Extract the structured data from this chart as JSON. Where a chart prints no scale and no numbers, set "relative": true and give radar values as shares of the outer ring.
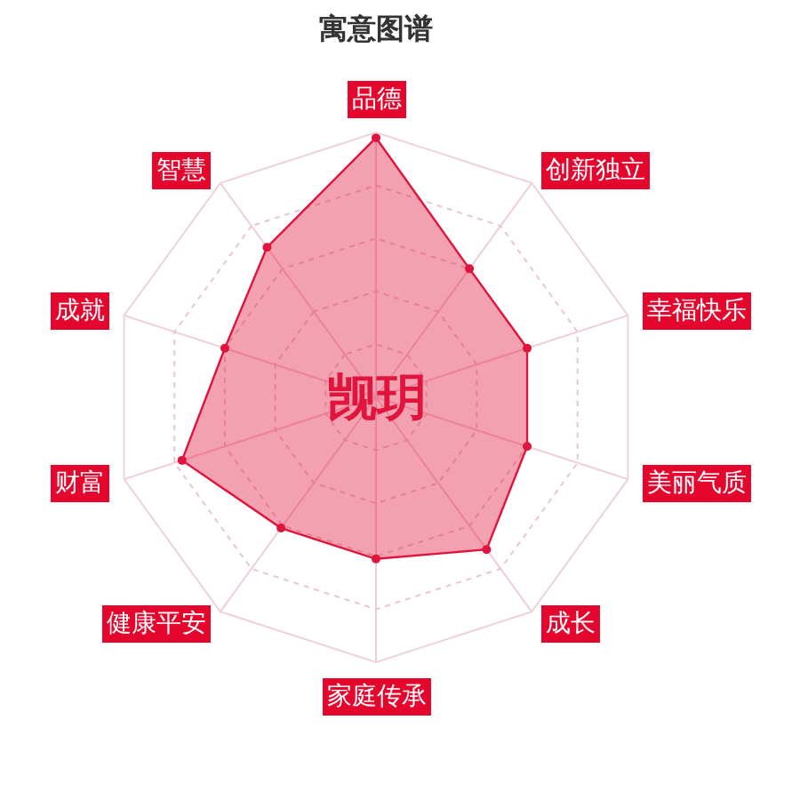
{
  "chart_data": {
    "type": "radar",
    "title": "寓意图谱",
    "annotations": [
      "觊玥"
    ],
    "categories": [
      "品德",
      "创新独立",
      "幸福快乐",
      "美丽气质",
      "成长",
      "家庭传承",
      "健康平安",
      "财富",
      "成就",
      "智慧"
    ],
    "series": [
      {
        "color": "#e0143c",
        "values": [
          0.98,
          0.6,
          0.6,
          0.6,
          0.71,
          0.61,
          0.61,
          0.77,
          0.6,
          0.7
        ]
      }
    ],
    "relative": true,
    "grid": true,
    "marker": "circle",
    "line_style": "solid"
  }
}
